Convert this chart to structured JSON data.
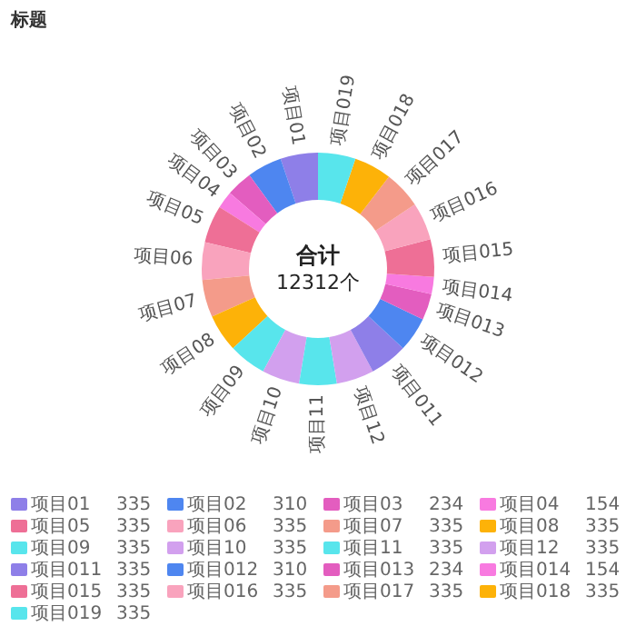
{
  "chart_data": {
    "type": "donut",
    "title": "标题",
    "categories": [
      "项目01",
      "项目02",
      "项目03",
      "项目04",
      "项目05",
      "项目06",
      "项目07",
      "项目08",
      "项目09",
      "项目10",
      "项目11",
      "项目12",
      "项目011",
      "项目012",
      "项目013",
      "项目014",
      "项目015",
      "项目016",
      "项目017",
      "项目018",
      "项目019"
    ],
    "values": [
      335,
      310,
      234,
      154,
      335,
      335,
      335,
      335,
      335,
      335,
      335,
      335,
      335,
      310,
      234,
      154,
      335,
      335,
      335,
      335,
      335
    ],
    "colors": [
      "#8e7fe8",
      "#4e86f0",
      "#e35dbf",
      "#f87ae0",
      "#ee6f96",
      "#f9a3bd",
      "#f49b8a",
      "#fdb208",
      "#58e5ec",
      "#d2a0ee",
      "#58e5ec",
      "#d2a0ee",
      "#8e7fe8",
      "#4e86f0",
      "#e35dbf",
      "#f87ae0",
      "#ee6f96",
      "#f9a3bd",
      "#f49b8a",
      "#fdb208",
      "#58e5ec"
    ],
    "annotations": [
      "合计",
      "12312个"
    ],
    "legend": "bottom",
    "value_labels": [
      "335",
      "310",
      "234",
      "154",
      "335",
      "335",
      "335",
      "335",
      "335",
      "335",
      "335",
      "335",
      "335",
      "310",
      "234",
      "154",
      "335",
      "335",
      "335",
      "335",
      "335"
    ]
  }
}
